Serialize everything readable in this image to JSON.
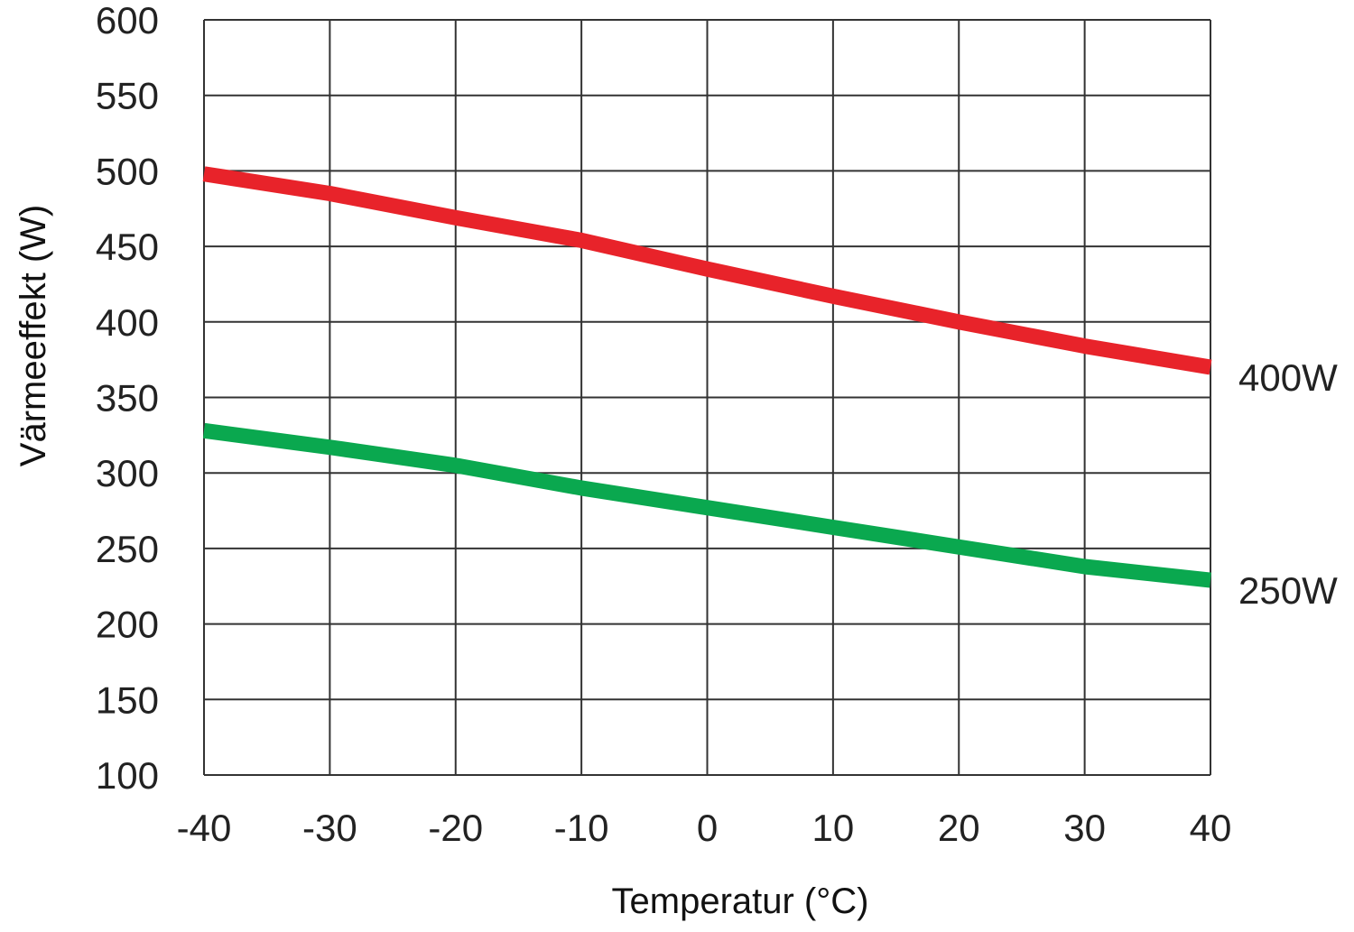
{
  "chart_data": {
    "type": "line",
    "title": "",
    "xlabel": "Temperatur (°C)",
    "ylabel": "Värmeeffekt (W)",
    "xlim": [
      -40,
      40
    ],
    "ylim": [
      100,
      600
    ],
    "xticks": [
      -40,
      -30,
      -20,
      -10,
      0,
      10,
      20,
      30,
      40
    ],
    "yticks": [
      100,
      150,
      200,
      250,
      300,
      350,
      400,
      450,
      500,
      550,
      600
    ],
    "grid": true,
    "x": [
      -40,
      -30,
      -20,
      -10,
      0,
      10,
      20,
      30,
      40
    ],
    "series": [
      {
        "name": "400W",
        "color": "#e8232a",
        "values": [
          498,
          485,
          469,
          454,
          435,
          417,
          400,
          384,
          370
        ]
      },
      {
        "name": "250W",
        "color": "#0aa84f",
        "values": [
          328,
          317,
          305,
          290,
          277,
          264,
          251,
          238,
          229
        ]
      }
    ],
    "legend": "inline-right"
  }
}
